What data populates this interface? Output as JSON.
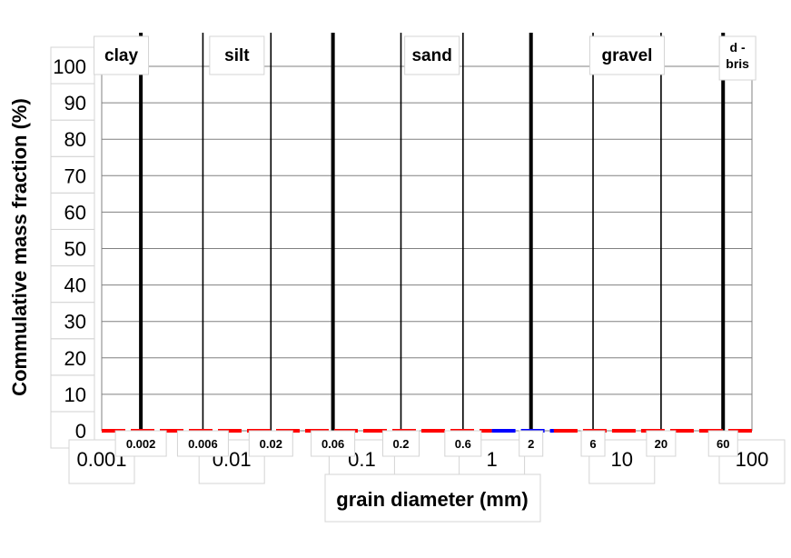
{
  "chart_data": {
    "type": "line",
    "xlabel": "grain diameter (mm)",
    "ylabel": "Commulative mass fraction (%)",
    "xscale": "log",
    "xlim": [
      0.001,
      100
    ],
    "ylim": [
      0,
      100
    ],
    "x_ticks": [
      "0.001",
      "0.01",
      "0.1",
      "1",
      "10",
      "100"
    ],
    "y_ticks": [
      "0",
      "10",
      "20",
      "30",
      "40",
      "50",
      "60",
      "70",
      "80",
      "90",
      "100"
    ],
    "grid": "horizontal",
    "boundaries": [
      {
        "x": 0.002,
        "label": "0.002",
        "major": true
      },
      {
        "x": 0.006,
        "label": "0.006",
        "major": false
      },
      {
        "x": 0.02,
        "label": "0.02",
        "major": false
      },
      {
        "x": 0.06,
        "label": "0.06",
        "major": true
      },
      {
        "x": 0.2,
        "label": "0.2",
        "major": false
      },
      {
        "x": 0.6,
        "label": "0.6",
        "major": false
      },
      {
        "x": 2,
        "label": "2",
        "major": true
      },
      {
        "x": 6,
        "label": "6",
        "major": false
      },
      {
        "x": 20,
        "label": "20",
        "major": false
      },
      {
        "x": 60,
        "label": "60",
        "major": true
      }
    ],
    "classes": [
      {
        "name": "clay"
      },
      {
        "name": "silt"
      },
      {
        "name": "sand"
      },
      {
        "name": "gravel"
      },
      {
        "name": "d -\nbris"
      }
    ],
    "series": [
      {
        "color": "#ff0000",
        "dashed": true,
        "x": [
          0.001,
          1
        ],
        "y": [
          0,
          0
        ]
      },
      {
        "color": "#0000ff",
        "dashed": true,
        "x": [
          1,
          3
        ],
        "y": [
          0,
          0
        ]
      },
      {
        "color": "#ff0000",
        "dashed": true,
        "x": [
          3,
          100
        ],
        "y": [
          0,
          0
        ]
      }
    ]
  }
}
